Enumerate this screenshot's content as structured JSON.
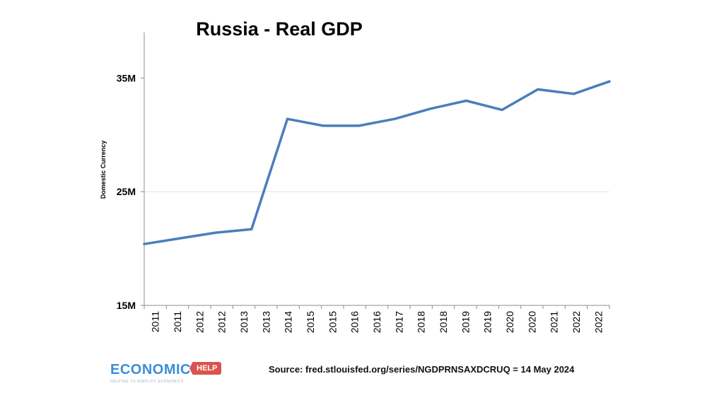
{
  "chart_data": {
    "type": "line",
    "title": "Russia - Real GDP",
    "ylabel": "Domestic Currency",
    "xlabel": "",
    "ylim": [
      15,
      39
    ],
    "yticks": [
      15,
      25,
      35
    ],
    "ytick_labels": [
      "15M",
      "25M",
      "35M"
    ],
    "y_gridlines": [
      25
    ],
    "x_tick_labels": [
      "2011",
      "2011",
      "2012",
      "2012",
      "2013",
      "2013",
      "2014",
      "2015",
      "2015",
      "2016",
      "2016",
      "2017",
      "2018",
      "2018",
      "2019",
      "2019",
      "2020",
      "2020",
      "2021",
      "2022",
      "2022"
    ],
    "series": [
      {
        "color": "#4a7ebb",
        "values": [
          20.4,
          20.9,
          21.4,
          21.7,
          31.4,
          30.8,
          30.8,
          31.4,
          32.3,
          33.0,
          32.2,
          34.0,
          33.6,
          34.7
        ]
      }
    ],
    "grid": "horizontal, light"
  },
  "source_text": "Source: fred.stlouisfed.org/series/NGDPRNSAXDCRUQ = 14 May 2024",
  "logo": {
    "main": "ECONOMICS",
    "tag": "HELP",
    "sub": "HELPING TO SIMPLIFY ECONOMICS",
    "colors": {
      "main": "#3a8fd6",
      "tag": "#d9534f"
    }
  }
}
